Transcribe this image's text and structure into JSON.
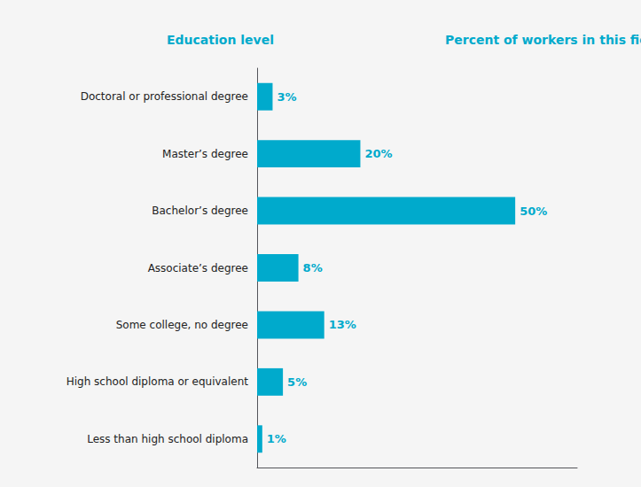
{
  "chart_data": {
    "type": "bar",
    "orientation": "horizontal",
    "ylabel": "Education level",
    "xlabel": "Percent of workers in this field",
    "categories": [
      "Doctoral or professional degree",
      "Master’s degree",
      "Bachelor’s degree",
      "Associate’s degree",
      "Some college, no degree",
      "High school diploma or equivalent",
      "Less than high school diploma"
    ],
    "values": [
      3,
      20,
      50,
      8,
      13,
      5,
      1
    ],
    "value_labels": [
      "3%",
      "20%",
      "50%",
      "8%",
      "13%",
      "5%",
      "1%"
    ],
    "data_labels": true,
    "color": "#00aacc",
    "xlim": [
      0,
      62
    ],
    "tick_labels": "y",
    "grid": false
  }
}
